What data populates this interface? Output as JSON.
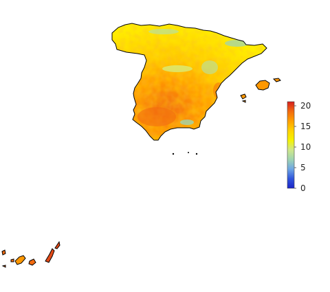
{
  "map": {
    "region": "Spain",
    "fill_palette": [
      "#1c25c8",
      "#4f87f2",
      "#9fd4b2",
      "#e9f06b",
      "#ffee00",
      "#ffc400",
      "#ff9800",
      "#f26a10",
      "#d61f1f"
    ],
    "regions": [
      {
        "name": "peninsula",
        "dominant": "#ffc400",
        "accents": [
          "#ff9800",
          "#f26a10",
          "#ffee00",
          "#9fd4b2"
        ]
      },
      {
        "name": "balearic-islands",
        "dominant": "#ff9800"
      },
      {
        "name": "canary-islands",
        "dominant": "#f26a10"
      }
    ]
  },
  "legend": {
    "min": 0,
    "max": 21,
    "ticks": [
      "20",
      "15",
      "10",
      "5",
      "0"
    ],
    "tick_values": [
      20,
      15,
      10,
      5,
      0
    ],
    "colors": [
      "#d61f1f",
      "#f26a10",
      "#ffa000",
      "#ffd200",
      "#f5f200",
      "#cfe88a",
      "#9fd4b2",
      "#6ea6e4",
      "#3055dc",
      "#1c25c8"
    ]
  }
}
